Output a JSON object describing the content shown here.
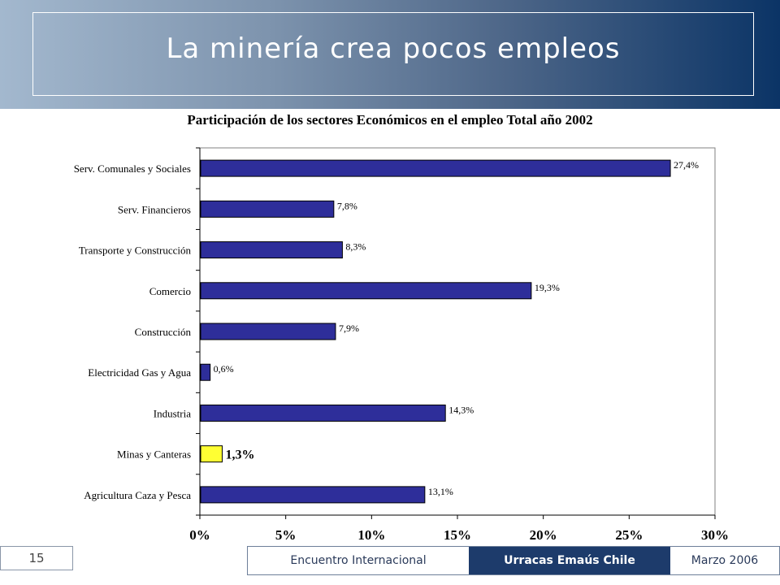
{
  "slide": {
    "title": "La minería crea pocos empleos",
    "page_number": "15"
  },
  "footer": {
    "event": "Encuentro Internacional",
    "org": "Urracas Emaús Chile",
    "date": "Marzo 2006"
  },
  "colors": {
    "bar": "#2e2e9a",
    "highlight": "#ffff33",
    "header_dark": "#0b3466",
    "header_light": "#a3b8ce"
  },
  "chart_data": {
    "type": "bar",
    "orientation": "horizontal",
    "title": "Participación de los sectores Económicos en el empleo Total año  2002",
    "categories": [
      "Serv. Comunales y Sociales",
      "Serv. Financieros",
      "Transporte y Construcción",
      "Comercio",
      "Construcción",
      "Electricidad Gas y Agua",
      "Industria",
      "Minas  y Canteras",
      "Agricultura Caza y Pesca"
    ],
    "values": [
      27.4,
      7.8,
      8.3,
      19.3,
      7.9,
      0.6,
      14.3,
      1.3,
      13.1
    ],
    "labels": [
      "27,4%",
      "7,8%",
      "8,3%",
      "19,3%",
      "7,9%",
      "0,6%",
      "14,3%",
      "1,3%",
      "13,1%"
    ],
    "highlight_index": 7,
    "xlim": [
      0,
      30
    ],
    "xticks": [
      0,
      5,
      10,
      15,
      20,
      25,
      30
    ],
    "xtick_labels": [
      "0%",
      "5%",
      "10%",
      "15%",
      "20%",
      "25%",
      "30%"
    ],
    "grid": false,
    "legend": "none"
  }
}
